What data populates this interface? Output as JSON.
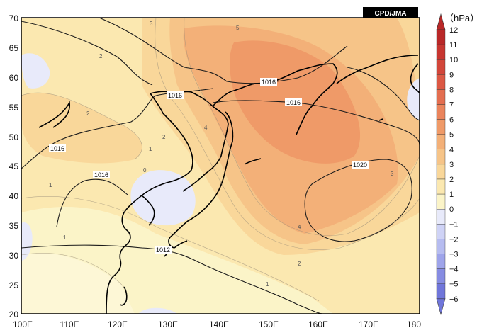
{
  "map": {
    "credit": "CPD/JMA",
    "unit_label": "（hPa）",
    "lat_ticks": [
      "70",
      "65",
      "60",
      "55",
      "50",
      "45",
      "40",
      "35",
      "30",
      "25",
      "20"
    ],
    "lon_ticks": [
      "100E",
      "110E",
      "120E",
      "130E",
      "140E",
      "150E",
      "160E",
      "170E",
      "180"
    ],
    "colorbar": {
      "ticks": [
        "12",
        "11",
        "10",
        "9",
        "8",
        "7",
        "6",
        "5",
        "4",
        "3",
        "2",
        "1",
        "0",
        "−1",
        "−2",
        "−3",
        "−4",
        "−5",
        "−6"
      ],
      "colors": {
        "pos": [
          "#fbf4c8",
          "#fbe8b0",
          "#f9d79a",
          "#f6c488",
          "#f3b078",
          "#ef9a68",
          "#ea845c",
          "#e36e50",
          "#dc5844",
          "#d2463a",
          "#c73630",
          "#b92828"
        ],
        "neg": [
          "#e8eafa",
          "#cfd3f6",
          "#b6bcf0",
          "#9ea4ea",
          "#868ce2",
          "#7076da"
        ]
      }
    },
    "isobar_labels": [
      "1016",
      "1016",
      "1016",
      "1016",
      "1012",
      "1020"
    ],
    "anomaly_labels": [
      "3",
      "5",
      "2",
      "2",
      "4",
      "2",
      "1",
      "0",
      "1",
      "1",
      "4",
      "2",
      "1",
      "3"
    ]
  }
}
